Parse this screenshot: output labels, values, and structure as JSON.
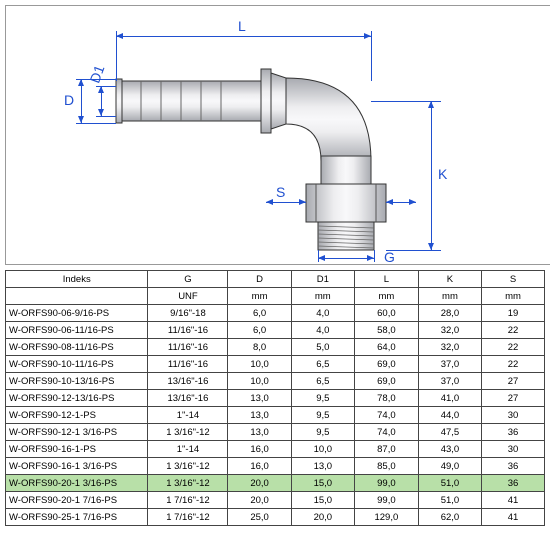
{
  "diagram": {
    "labels": {
      "L": "L",
      "D": "D",
      "D1": "D1",
      "S": "S",
      "K": "K",
      "G": "G"
    },
    "colors": {
      "dim_line": "#2050d0",
      "fitting_fill": "#d5d7da",
      "fitting_stroke": "#333",
      "thread_stroke": "#666"
    }
  },
  "table": {
    "headers": [
      "Indeks",
      "G",
      "D",
      "D1",
      "L",
      "K",
      "S"
    ],
    "unit_row": [
      "",
      "UNF",
      "mm",
      "mm",
      "mm",
      "mm",
      "mm"
    ],
    "rows": [
      [
        "W-ORFS90-06-9/16-PS",
        "9/16\"-18",
        "6,0",
        "4,0",
        "60,0",
        "28,0",
        "19"
      ],
      [
        "W-ORFS90-06-11/16-PS",
        "11/16\"-16",
        "6,0",
        "4,0",
        "58,0",
        "32,0",
        "22"
      ],
      [
        "W-ORFS90-08-11/16-PS",
        "11/16\"-16",
        "8,0",
        "5,0",
        "64,0",
        "32,0",
        "22"
      ],
      [
        "W-ORFS90-10-11/16-PS",
        "11/16\"-16",
        "10,0",
        "6,5",
        "69,0",
        "37,0",
        "22"
      ],
      [
        "W-ORFS90-10-13/16-PS",
        "13/16\"-16",
        "10,0",
        "6,5",
        "69,0",
        "37,0",
        "27"
      ],
      [
        "W-ORFS90-12-13/16-PS",
        "13/16\"-16",
        "13,0",
        "9,5",
        "78,0",
        "41,0",
        "27"
      ],
      [
        "W-ORFS90-12-1-PS",
        "1\"-14",
        "13,0",
        "9,5",
        "74,0",
        "44,0",
        "30"
      ],
      [
        "W-ORFS90-12-1 3/16-PS",
        "1 3/16\"-12",
        "13,0",
        "9,5",
        "74,0",
        "47,5",
        "36"
      ],
      [
        "W-ORFS90-16-1-PS",
        "1\"-14",
        "16,0",
        "10,0",
        "87,0",
        "43,0",
        "30"
      ],
      [
        "W-ORFS90-16-1 3/16-PS",
        "1 3/16\"-12",
        "16,0",
        "13,0",
        "85,0",
        "49,0",
        "36"
      ],
      [
        "W-ORFS90-20-1 3/16-PS",
        "1 3/16\"-12",
        "20,0",
        "15,0",
        "99,0",
        "51,0",
        "36"
      ],
      [
        "W-ORFS90-20-1 7/16-PS",
        "1 7/16\"-12",
        "20,0",
        "15,0",
        "99,0",
        "51,0",
        "41"
      ],
      [
        "W-ORFS90-25-1 7/16-PS",
        "1 7/16\"-12",
        "25,0",
        "20,0",
        "129,0",
        "62,0",
        "41"
      ]
    ],
    "highlight_index": 10,
    "col_widths": [
      "150px",
      "78px",
      "62px",
      "62px",
      "62px",
      "62px",
      "62px"
    ]
  }
}
